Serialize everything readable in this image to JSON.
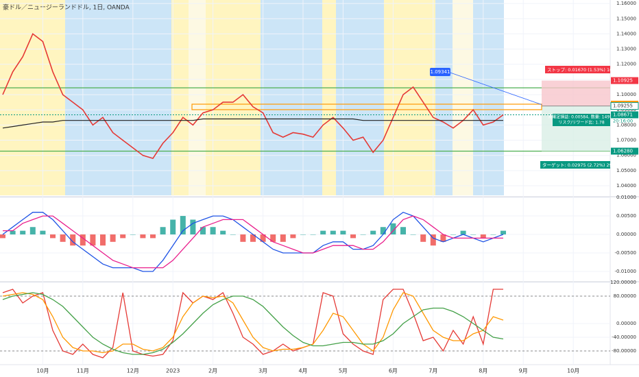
{
  "chart_data": [
    {
      "type": "line",
      "title": "豪ドル／ニュージーランドドル, 1日, OANDA",
      "categories": [
        null,
        null,
        null,
        null,
        "10月",
        null,
        null,
        null,
        "11月",
        null,
        null,
        null,
        null,
        "12月",
        null,
        null,
        null,
        "2023",
        null,
        null,
        null,
        "2月",
        null,
        null,
        null,
        null,
        "3月",
        null,
        null,
        null,
        "4月",
        null,
        null,
        null,
        "5月",
        null,
        null,
        null,
        null,
        "6月",
        null,
        null,
        null,
        "7月",
        null,
        null,
        null,
        null,
        "8月",
        null,
        null,
        null,
        "9月",
        null,
        null,
        null,
        null,
        "10月"
      ],
      "series": [
        {
          "color": "#e53935",
          "values": [
            1.1,
            1.115,
            1.125,
            1.14,
            1.135,
            1.115,
            1.1,
            1.095,
            1.09,
            1.08,
            1.085,
            1.075,
            1.07,
            1.065,
            1.06,
            1.058,
            1.068,
            1.075,
            1.085,
            1.08,
            1.088,
            1.09,
            1.095,
            1.095,
            1.1,
            1.092,
            1.088,
            1.075,
            1.072,
            1.075,
            1.074,
            1.072,
            1.08,
            1.085,
            1.078,
            1.07,
            1.072,
            1.062,
            1.07,
            1.085,
            1.1,
            1.105,
            1.095,
            1.085,
            1.082,
            1.078,
            1.083,
            1.09,
            1.08,
            1.082,
            1.0867,
            null,
            null,
            null,
            null,
            null,
            null,
            null
          ]
        },
        {
          "color": "#222222",
          "values": [
            1.078,
            1.079,
            1.08,
            1.081,
            1.082,
            1.082,
            1.083,
            1.083,
            1.083,
            1.083,
            1.083,
            1.083,
            1.083,
            1.083,
            1.083,
            1.083,
            1.083,
            1.083,
            1.083,
            1.083,
            1.084,
            1.084,
            1.084,
            1.084,
            1.084,
            1.084,
            1.084,
            1.084,
            1.084,
            1.084,
            1.084,
            1.084,
            1.084,
            1.084,
            1.084,
            1.084,
            1.083,
            1.083,
            1.083,
            1.083,
            1.083,
            1.083,
            1.083,
            1.083,
            1.083,
            1.083,
            1.083,
            1.083,
            1.083,
            1.083,
            1.083,
            null,
            null,
            null,
            null,
            null,
            null,
            null
          ]
        }
      ],
      "ylim": [
        1.0337,
        1.1623
      ],
      "yticks": [
        {
          "value": 1.04,
          "label": "1.04000"
        },
        {
          "value": 1.05,
          "label": "1.05000"
        },
        {
          "value": 1.06,
          "label": "1.06000"
        },
        {
          "value": 1.07,
          "label": "1.07000"
        },
        {
          "value": 1.08,
          "label": "1.08000"
        },
        {
          "value": 1.09,
          "label": "1.09000"
        },
        {
          "value": 1.1,
          "label": "1.10000"
        },
        {
          "value": 1.11,
          "label": "1.11000"
        },
        {
          "value": 1.12,
          "label": "1.12000"
        },
        {
          "value": 1.13,
          "label": "1.13000"
        },
        {
          "value": 1.14,
          "label": "1.14000"
        },
        {
          "value": 1.15,
          "label": "1.15000"
        },
        {
          "value": 1.16,
          "label": "1.16000"
        }
      ],
      "levels": [
        {
          "value": 1.1045,
          "color": "#4caf50"
        },
        {
          "value": 1.0628,
          "color": "#4caf50"
        }
      ],
      "price_labels": [
        {
          "value": 1.10925,
          "label": "1.10925",
          "color": "#f23645"
        },
        {
          "value": 1.09372,
          "label": "1.09372",
          "color": "#ff9800"
        },
        {
          "value": 1.09255,
          "label": "1.09255",
          "color": "#ffffff"
        },
        {
          "value": 1.08671,
          "label": "1.08671",
          "color": "#089981"
        },
        {
          "value": 1.0628,
          "label": "1.06280",
          "color": "#089981"
        }
      ],
      "callout": {
        "value": 1.09341,
        "label": "1.09341"
      },
      "timer": "20:16:00",
      "position": {
        "stop_text": "ストップ: 0.01670 (1.53%) 167.0, 金額:",
        "pnl_text": "未確定損益: 0.00584, 数量: 14970",
        "rr_text": "リスク/リワード比: 1.78",
        "target_text": "ターゲット: 0.02975 (2.72%) 297.5, 金額: 1"
      }
    },
    {
      "type": "macd",
      "series": [
        {
          "color": "#1e53e5",
          "values": [
            0.0,
            0.002,
            0.004,
            0.006,
            0.006,
            0.004,
            0.001,
            -0.002,
            -0.004,
            -0.006,
            -0.008,
            -0.009,
            -0.009,
            -0.009,
            -0.01,
            -0.01,
            -0.007,
            -0.003,
            0.001,
            0.003,
            0.004,
            0.005,
            0.005,
            0.004,
            0.002,
            0.0,
            -0.002,
            -0.004,
            -0.005,
            -0.005,
            -0.005,
            -0.005,
            -0.003,
            -0.002,
            -0.002,
            -0.004,
            -0.004,
            -0.003,
            0.0,
            0.004,
            0.006,
            0.005,
            0.002,
            -0.001,
            -0.002,
            -0.001,
            0.0,
            -0.001,
            -0.002,
            -0.001,
            0.0,
            null,
            null,
            null,
            null,
            null,
            null,
            null
          ]
        },
        {
          "color": "#e91e8c",
          "values": [
            0.001,
            0.001,
            0.003,
            0.004,
            0.005,
            0.005,
            0.003,
            0.001,
            -0.001,
            -0.003,
            -0.005,
            -0.007,
            -0.008,
            -0.009,
            -0.009,
            -0.009,
            -0.009,
            -0.007,
            -0.004,
            -0.001,
            0.002,
            0.003,
            0.004,
            0.004,
            0.004,
            0.002,
            0.0,
            -0.002,
            -0.003,
            -0.004,
            -0.005,
            -0.005,
            -0.004,
            -0.003,
            -0.003,
            -0.003,
            -0.004,
            -0.004,
            -0.002,
            0.001,
            0.004,
            0.005,
            0.004,
            0.002,
            0.0,
            -0.001,
            -0.001,
            -0.001,
            -0.001,
            -0.001,
            -0.001,
            null,
            null,
            null,
            null,
            null,
            null,
            null
          ]
        }
      ],
      "histogram": [
        -0.001,
        0.001,
        0.001,
        0.002,
        0.001,
        -0.001,
        -0.002,
        -0.003,
        -0.003,
        -0.003,
        -0.003,
        -0.002,
        -0.001,
        0.0,
        -0.001,
        -0.001,
        0.002,
        0.004,
        0.005,
        0.004,
        0.002,
        0.002,
        0.001,
        0.0,
        -0.002,
        -0.002,
        -0.002,
        -0.002,
        -0.002,
        -0.001,
        0.0,
        0.0,
        0.001,
        0.001,
        0.001,
        -0.001,
        0.0,
        0.001,
        0.002,
        0.003,
        0.002,
        0.0,
        -0.002,
        -0.003,
        -0.002,
        0.0,
        0.001,
        0.0,
        -0.001,
        0.0,
        0.001,
        null,
        null,
        null,
        null,
        null,
        null,
        null
      ],
      "ylim": [
        -0.0126,
        0.0102
      ],
      "yticks": [
        {
          "value": 0.01,
          "label": "0.01000"
        },
        {
          "value": 0.005,
          "label": "0.00500"
        },
        {
          "value": 0,
          "label": "0.00000"
        },
        {
          "value": -0.005,
          "label": "-0.00500"
        },
        {
          "value": -0.01,
          "label": "-0.01000"
        }
      ]
    },
    {
      "type": "oscillator",
      "series": [
        {
          "color": "#e53935",
          "values": [
            90,
            100,
            60,
            80,
            90,
            -20,
            -80,
            -90,
            -60,
            -90,
            -100,
            -70,
            90,
            -80,
            -90,
            -95,
            -90,
            -50,
            90,
            60,
            80,
            70,
            90,
            30,
            -40,
            -60,
            -90,
            -80,
            -60,
            -80,
            -70,
            -60,
            90,
            80,
            -30,
            -60,
            -80,
            -90,
            70,
            100,
            100,
            30,
            -50,
            -40,
            -80,
            -20,
            -60,
            20,
            -60,
            100,
            100,
            null,
            null,
            null,
            null,
            null,
            null,
            null
          ]
        },
        {
          "color": "#ff9800",
          "values": [
            80,
            85,
            90,
            85,
            70,
            20,
            -40,
            -70,
            -80,
            -80,
            -85,
            -80,
            -60,
            -60,
            -75,
            -80,
            -70,
            -40,
            20,
            60,
            80,
            75,
            80,
            60,
            10,
            -40,
            -70,
            -80,
            -75,
            -75,
            -70,
            -60,
            -20,
            30,
            20,
            -20,
            -60,
            -80,
            -40,
            40,
            90,
            80,
            30,
            -20,
            -40,
            -50,
            -50,
            -30,
            -20,
            20,
            10,
            null,
            null,
            null,
            null,
            null,
            null,
            null
          ]
        },
        {
          "color": "#43a047",
          "values": [
            70,
            80,
            85,
            90,
            85,
            70,
            50,
            20,
            -10,
            -40,
            -60,
            -75,
            -85,
            -90,
            -90,
            -85,
            -75,
            -55,
            -30,
            0,
            30,
            55,
            70,
            80,
            80,
            70,
            50,
            20,
            -10,
            -35,
            -55,
            -65,
            -65,
            -60,
            -55,
            -55,
            -60,
            -60,
            -50,
            -30,
            0,
            20,
            40,
            45,
            45,
            35,
            20,
            0,
            -20,
            -40,
            -45,
            null,
            null,
            null,
            null,
            null,
            null,
            null
          ]
        }
      ],
      "ylim": [
        -146,
        124
      ],
      "yticks": [
        {
          "value": 120,
          "label": "120.00000"
        },
        {
          "value": 80,
          "label": "80.00000"
        },
        {
          "value": 0,
          "label": "0.00000"
        },
        {
          "value": -40,
          "label": "-40.00000"
        },
        {
          "value": -80,
          "label": "-80.00000"
        }
      ],
      "dashed": [
        80,
        -80
      ]
    }
  ]
}
